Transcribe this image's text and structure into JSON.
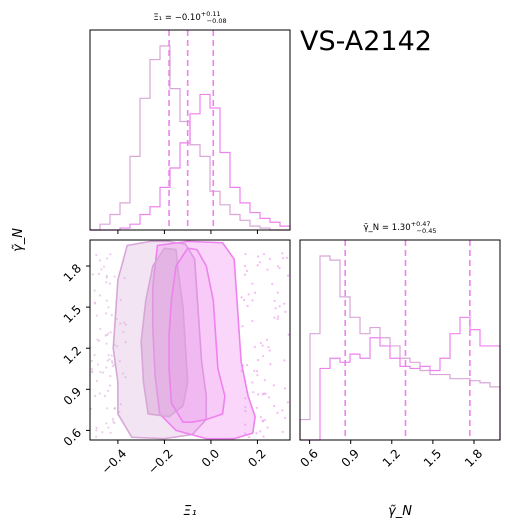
{
  "figure_title": "VS-A2142",
  "chart_data": [
    {
      "type": "histogram",
      "panel": "top-left",
      "title": "Ξ₁ = −0.10 (+0.11 / −0.08)",
      "xlim": [
        -0.52,
        0.34
      ],
      "bins": [
        -0.52,
        -0.477,
        -0.434,
        -0.391,
        -0.348,
        -0.305,
        -0.262,
        -0.219,
        -0.176,
        -0.133,
        -0.09,
        -0.047,
        -0.004,
        0.039,
        0.082,
        0.125,
        0.168,
        0.211,
        0.254,
        0.297,
        0.34
      ],
      "series": [
        {
          "color": "#d8a7d8",
          "counts": [
            0,
            3,
            8,
            14,
            38,
            68,
            88,
            95,
            73,
            56,
            44,
            38,
            20,
            13,
            8,
            5,
            2,
            1,
            0,
            0
          ]
        },
        {
          "color": "#ee82ee",
          "counts": [
            0,
            0,
            0,
            1,
            3,
            8,
            12,
            22,
            32,
            45,
            60,
            70,
            63,
            40,
            22,
            14,
            9,
            6,
            4,
            2
          ]
        }
      ],
      "quantiles": [
        -0.18,
        -0.1,
        0.01
      ]
    },
    {
      "type": "contour",
      "panel": "bottom-left",
      "xlabel": "Ξ₁",
      "ylabel": "γ̃_N",
      "xlim": [
        -0.52,
        0.34
      ],
      "ylim": [
        0.53,
        1.99
      ],
      "xticks": [
        -0.4,
        -0.2,
        0.0,
        0.2
      ],
      "xticklabels": [
        "−0.4",
        "−0.2",
        "0.0",
        "0.2"
      ],
      "yticks": [
        0.6,
        0.9,
        1.2,
        1.5,
        1.8
      ],
      "yticklabels": [
        "0.6",
        "0.9",
        "1.2",
        "1.5",
        "1.8"
      ],
      "series": [
        {
          "color": "#d8a7d8",
          "outer": [
            [
              -0.34,
              0.55
            ],
            [
              -0.4,
              0.72
            ],
            [
              -0.4,
              0.95
            ],
            [
              -0.42,
              1.2
            ],
            [
              -0.41,
              1.45
            ],
            [
              -0.4,
              1.7
            ],
            [
              -0.36,
              1.95
            ],
            [
              -0.26,
              1.98
            ],
            [
              -0.18,
              1.98
            ],
            [
              -0.11,
              1.96
            ],
            [
              -0.07,
              1.85
            ],
            [
              -0.06,
              1.6
            ],
            [
              -0.05,
              1.35
            ],
            [
              -0.04,
              1.1
            ],
            [
              -0.02,
              0.85
            ],
            [
              -0.02,
              0.68
            ],
            [
              -0.08,
              0.57
            ],
            [
              -0.2,
              0.54
            ]
          ],
          "inner": [
            [
              -0.27,
              0.72
            ],
            [
              -0.29,
              0.95
            ],
            [
              -0.3,
              1.25
            ],
            [
              -0.28,
              1.55
            ],
            [
              -0.25,
              1.8
            ],
            [
              -0.2,
              1.93
            ],
            [
              -0.15,
              1.92
            ],
            [
              -0.14,
              1.75
            ],
            [
              -0.12,
              1.5
            ],
            [
              -0.11,
              1.22
            ],
            [
              -0.1,
              0.95
            ],
            [
              -0.12,
              0.78
            ],
            [
              -0.18,
              0.7
            ]
          ]
        },
        {
          "color": "#ee82ee",
          "outer": [
            [
              -0.02,
              0.54
            ],
            [
              -0.15,
              0.6
            ],
            [
              -0.22,
              0.72
            ],
            [
              -0.24,
              1.0
            ],
            [
              -0.25,
              1.35
            ],
            [
              -0.25,
              1.65
            ],
            [
              -0.23,
              1.95
            ],
            [
              -0.1,
              1.98
            ],
            [
              0.05,
              1.97
            ],
            [
              0.1,
              1.85
            ],
            [
              0.11,
              1.6
            ],
            [
              0.12,
              1.35
            ],
            [
              0.13,
              1.1
            ],
            [
              0.16,
              0.85
            ],
            [
              0.19,
              0.7
            ],
            [
              0.18,
              0.58
            ],
            [
              0.1,
              0.54
            ]
          ],
          "inner": [
            [
              -0.12,
              0.66
            ],
            [
              -0.17,
              0.8
            ],
            [
              -0.18,
              1.05
            ],
            [
              -0.18,
              1.3
            ],
            [
              -0.17,
              1.55
            ],
            [
              -0.15,
              1.8
            ],
            [
              -0.1,
              1.93
            ],
            [
              -0.06,
              1.92
            ],
            [
              -0.02,
              1.8
            ],
            [
              0.01,
              1.55
            ],
            [
              0.02,
              1.3
            ],
            [
              0.03,
              1.05
            ],
            [
              0.06,
              0.85
            ],
            [
              0.05,
              0.72
            ],
            [
              -0.02,
              0.68
            ],
            [
              -0.08,
              0.66
            ]
          ]
        }
      ]
    },
    {
      "type": "histogram",
      "panel": "bottom-right",
      "title": "γ̃_N = 1.30 (+0.47 / −0.45)",
      "xlabel": "γ̃_N",
      "xlim": [
        0.53,
        1.99
      ],
      "xticks": [
        0.6,
        0.9,
        1.2,
        1.5,
        1.8
      ],
      "xticklabels": [
        "0.6",
        "0.9",
        "1.2",
        "1.5",
        "1.8"
      ],
      "bins": [
        0.53,
        0.603,
        0.676,
        0.749,
        0.822,
        0.895,
        0.968,
        1.041,
        1.114,
        1.187,
        1.26,
        1.333,
        1.406,
        1.479,
        1.552,
        1.625,
        1.698,
        1.771,
        1.844,
        1.917,
        1.99
      ],
      "series": [
        {
          "color": "#d8a7d8",
          "counts": [
            10,
            52,
            90,
            88,
            70,
            60,
            52,
            55,
            50,
            46,
            40,
            38,
            34,
            32,
            32,
            30,
            30,
            29,
            28,
            26
          ]
        },
        {
          "color": "#ee82ee",
          "counts": [
            0,
            0,
            35,
            40,
            38,
            42,
            40,
            50,
            46,
            40,
            36,
            35,
            36,
            34,
            40,
            52,
            60,
            54,
            46,
            46
          ]
        }
      ],
      "quantiles": [
        0.86,
        1.3,
        1.77
      ]
    }
  ]
}
